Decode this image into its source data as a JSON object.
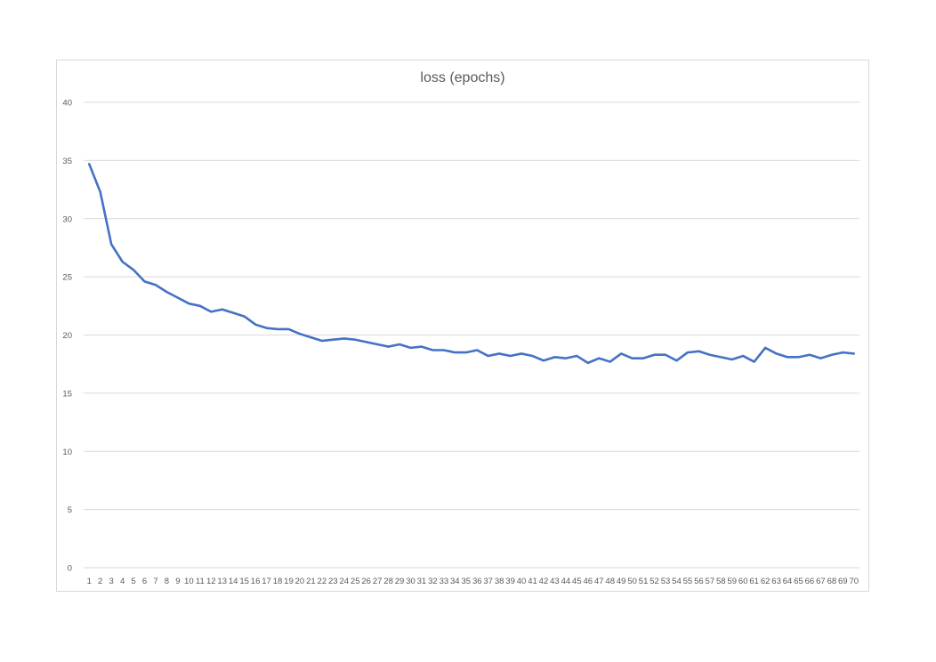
{
  "chart_data": {
    "type": "line",
    "title": "loss (epochs)",
    "xlabel": "",
    "ylabel": "",
    "ylim": [
      0,
      40
    ],
    "yticks": [
      0,
      5,
      10,
      15,
      20,
      25,
      30,
      35,
      40
    ],
    "grid": true,
    "legend": "none",
    "x": [
      1,
      2,
      3,
      4,
      5,
      6,
      7,
      8,
      9,
      10,
      11,
      12,
      13,
      14,
      15,
      16,
      17,
      18,
      19,
      20,
      21,
      22,
      23,
      24,
      25,
      26,
      27,
      28,
      29,
      30,
      31,
      32,
      33,
      34,
      35,
      36,
      37,
      38,
      39,
      40,
      41,
      42,
      43,
      44,
      45,
      46,
      47,
      48,
      49,
      50,
      51,
      52,
      53,
      54,
      55,
      56,
      57,
      58,
      59,
      60,
      61,
      62,
      63,
      64,
      65,
      66,
      67,
      68,
      69,
      70
    ],
    "series": [
      {
        "values": [
          34.7,
          32.3,
          27.8,
          26.3,
          25.6,
          24.6,
          24.3,
          23.7,
          23.2,
          22.7,
          22.5,
          22.0,
          22.2,
          21.9,
          21.6,
          20.9,
          20.6,
          20.5,
          20.5,
          20.1,
          19.8,
          19.5,
          19.6,
          19.7,
          19.6,
          19.4,
          19.2,
          19.0,
          19.2,
          18.9,
          19.0,
          18.7,
          18.7,
          18.5,
          18.5,
          18.7,
          18.2,
          18.4,
          18.2,
          18.4,
          18.2,
          17.8,
          18.1,
          18.0,
          18.2,
          17.6,
          18.0,
          17.7,
          18.4,
          18.0,
          18.0,
          18.3,
          18.3,
          17.8,
          18.5,
          18.6,
          18.3,
          18.1,
          17.9,
          18.2,
          17.7,
          18.9,
          18.4,
          18.1,
          18.1,
          18.3,
          18.0,
          18.3,
          18.5,
          18.4
        ],
        "color": "#4472c4"
      }
    ]
  },
  "colors": {
    "gridline": "#d9d9d9",
    "text": "#595959",
    "series": "#4472c4"
  }
}
